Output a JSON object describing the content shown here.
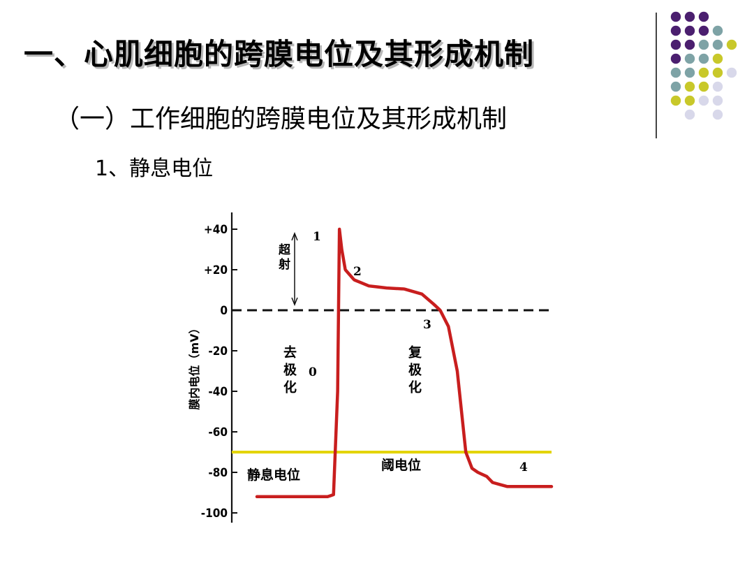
{
  "slide": {
    "title": "一、心肌细胞的跨膜电位及其形成机制",
    "subtitle": "（一）工作细胞的跨膜电位及其形成机制",
    "section": "1、静息电位"
  },
  "decor": {
    "colors": {
      "purple": "#4b1f6f",
      "teal": "#7ea3a6",
      "olive": "#c8c82a",
      "lavender": "#d8d8ea",
      "divider": "#444444"
    },
    "grid": [
      [
        "purple",
        "purple",
        "purple",
        "",
        ""
      ],
      [
        "purple",
        "purple",
        "purple",
        "teal",
        ""
      ],
      [
        "purple",
        "purple",
        "teal",
        "teal",
        "olive"
      ],
      [
        "purple",
        "teal",
        "teal",
        "olive",
        ""
      ],
      [
        "teal",
        "teal",
        "olive",
        "olive",
        "lavender"
      ],
      [
        "teal",
        "olive",
        "olive",
        "lavender",
        ""
      ],
      [
        "olive",
        "olive",
        "lavender",
        "lavender",
        ""
      ],
      [
        "",
        "lavender",
        "",
        "lavender",
        ""
      ]
    ]
  },
  "chart_data": {
    "type": "line",
    "title": "",
    "xlabel": "",
    "ylabel": "膜内电位（mV）",
    "ylim": [
      -100,
      40
    ],
    "yticks": [
      "+40",
      "+20",
      "0",
      "-20",
      "-40",
      "-60",
      "-80",
      "-100"
    ],
    "ytick_values": [
      40,
      20,
      0,
      -20,
      -40,
      -60,
      -80,
      -100
    ],
    "reference_lines": [
      {
        "name": "zero-line",
        "y": 0,
        "style": "dashed",
        "color": "#111111"
      },
      {
        "name": "threshold-line",
        "y": -70,
        "style": "solid",
        "color": "#e3d400",
        "label": "阈电位"
      }
    ],
    "series": [
      {
        "color": "#c81e1e",
        "x": [
          0,
          24,
          26,
          27.4,
          28,
          28.8,
          30,
          33,
          38,
          44,
          50,
          56,
          60,
          62.2,
          65,
          68,
          70.9,
          73,
          75,
          78,
          80,
          85,
          90,
          100
        ],
        "y": [
          -92,
          -92,
          -91,
          -40,
          40,
          30,
          20,
          15,
          12,
          11,
          10.5,
          8,
          3,
          0,
          -8,
          -30,
          -70,
          -78,
          -80,
          -82,
          -85,
          -87,
          -87,
          -87
        ]
      }
    ],
    "annotations": {
      "phase_labels": [
        "1",
        "2",
        "3",
        "0",
        "4"
      ],
      "overshoot": "超射",
      "depolarization": "去极化",
      "repolarization": "复极化",
      "resting_potential": "静息电位",
      "threshold": "阈电位"
    }
  }
}
